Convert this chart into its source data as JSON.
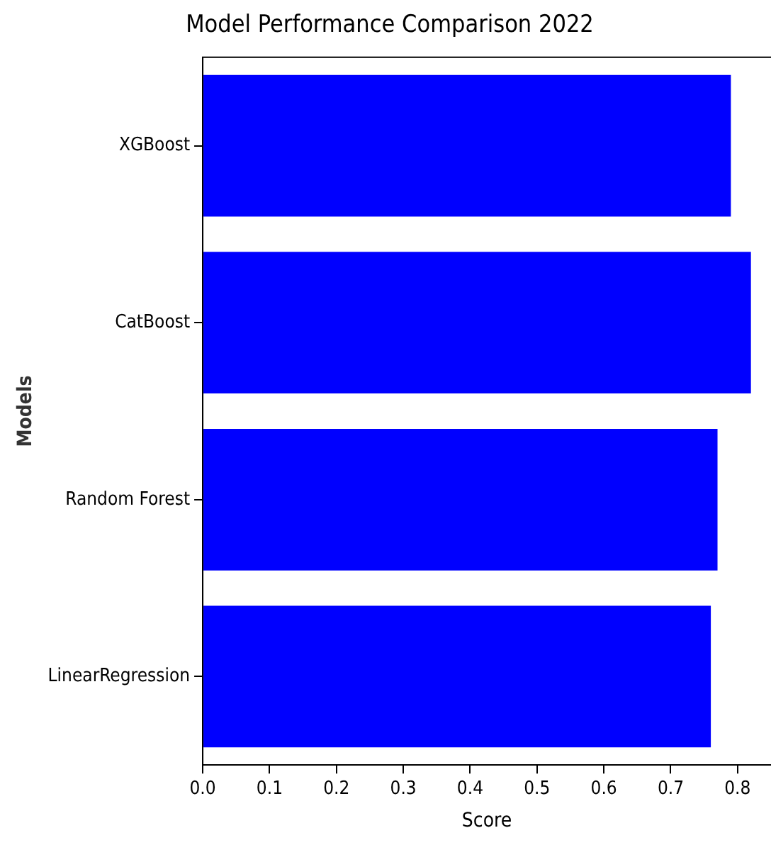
{
  "chart_data": {
    "type": "bar",
    "orientation": "horizontal",
    "title": "Model Performance Comparison 2022",
    "xlabel": "Score",
    "ylabel": "Models",
    "categories": [
      "XGBoost",
      "CatBoost",
      "Random Forest",
      "LinearRegression"
    ],
    "values": [
      0.79,
      0.82,
      0.77,
      0.76
    ],
    "color": "#0000ff",
    "xlim": [
      0,
      0.85
    ],
    "xticks": [
      {
        "value": 0,
        "label": "0.0"
      },
      {
        "value": 0.1,
        "label": "0.1"
      },
      {
        "value": 0.2,
        "label": "0.2"
      },
      {
        "value": 0.3,
        "label": "0.3"
      },
      {
        "value": 0.4,
        "label": "0.4"
      },
      {
        "value": 0.5,
        "label": "0.5"
      },
      {
        "value": 0.6,
        "label": "0.6"
      },
      {
        "value": 0.7,
        "label": "0.7"
      },
      {
        "value": 0.8,
        "label": "0.8"
      }
    ],
    "grid": false,
    "legend": false
  }
}
